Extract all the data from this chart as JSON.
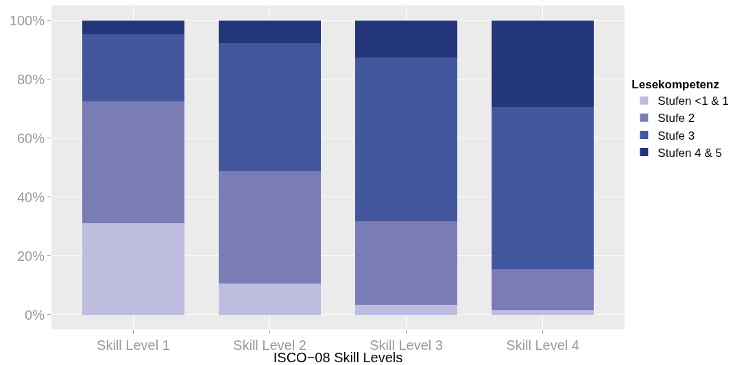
{
  "chart_data": {
    "type": "bar",
    "xlabel": "ISCO−08 Skill Levels",
    "legend_title": "Lesekompetenz",
    "categories": [
      "Skill Level 1",
      "Skill Level 2",
      "Skill Level 3",
      "Skill Level 4"
    ],
    "stacked": true,
    "series": [
      {
        "name": "Stufen <1 & 1",
        "color": "#bebddf",
        "values": [
          31.0,
          10.5,
          3.3,
          1.6
        ]
      },
      {
        "name": "Stufe 2",
        "color": "#7a7db5",
        "values": [
          41.5,
          38.2,
          28.4,
          13.8
        ]
      },
      {
        "name": "Stufe 3",
        "color": "#43579e",
        "values": [
          22.8,
          43.4,
          55.7,
          55.2
        ]
      },
      {
        "name": "Stufen 4 & 5",
        "color": "#24367a",
        "values": [
          4.7,
          7.9,
          12.6,
          29.4
        ]
      }
    ],
    "ylim": [
      -5,
      105
    ],
    "yticks": [
      {
        "value": 0,
        "label": "0%"
      },
      {
        "value": 20,
        "label": "20%"
      },
      {
        "value": 40,
        "label": "40%"
      },
      {
        "value": 60,
        "label": "60%"
      },
      {
        "value": 80,
        "label": "80%"
      },
      {
        "value": 100,
        "label": "100%"
      }
    ],
    "grid": true,
    "legend": "right"
  }
}
